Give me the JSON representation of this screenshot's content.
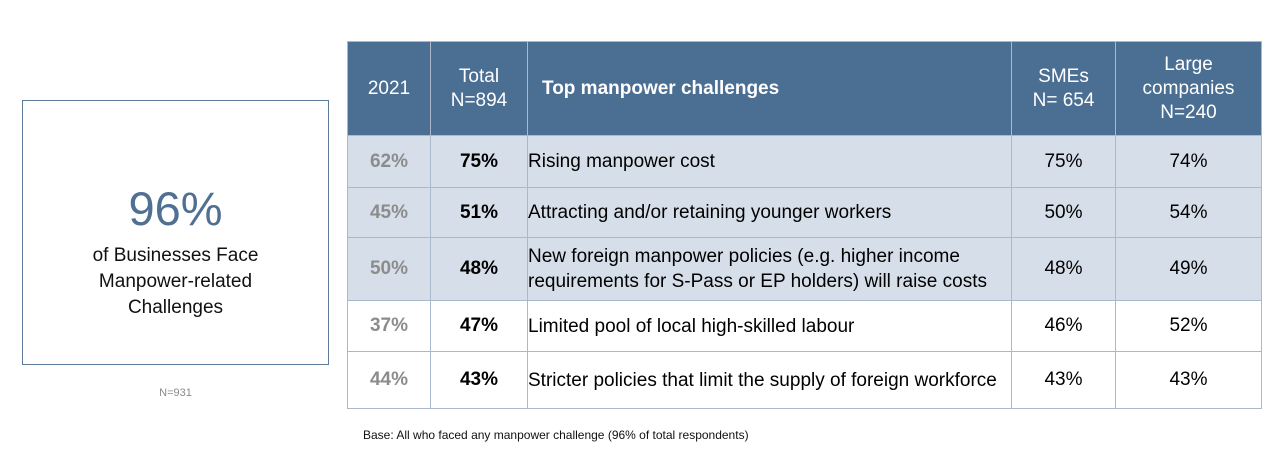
{
  "stat": {
    "value": "96%",
    "description": "of Businesses Face\nManpower-related\nChallenges",
    "n": "N=931"
  },
  "table": {
    "headers": {
      "year": "2021",
      "total": "Total\nN=894",
      "challenge": "Top manpower challenges",
      "smes": "SMEs\nN= 654",
      "large": "Large\ncompanies\nN=240"
    },
    "rows": [
      {
        "y2021": "62%",
        "total": "75%",
        "challenge": "Rising manpower cost",
        "smes": "75%",
        "large": "74%"
      },
      {
        "y2021": "45%",
        "total": "51%",
        "challenge": "Attracting and/or retaining younger workers",
        "smes": "50%",
        "large": "54%"
      },
      {
        "y2021": "50%",
        "total": "48%",
        "challenge": "New foreign manpower policies (e.g. higher income requirements for S-Pass or EP holders) will raise costs",
        "smes": "48%",
        "large": "49%"
      },
      {
        "y2021": "37%",
        "total": "47%",
        "challenge": "Limited pool of local high-skilled labour",
        "smes": "46%",
        "large": "52%"
      },
      {
        "y2021": "44%",
        "total": "43%",
        "challenge": "Stricter policies that limit the supply of foreign workforce",
        "smes": "43%",
        "large": "43%"
      }
    ]
  },
  "footnote": "Base: All who faced any manpower challenge (96% of total respondents)",
  "colors": {
    "header_bg": "#4b6e93",
    "shaded_row": "#d6dfe9",
    "stat_value": "#4f6f93"
  }
}
